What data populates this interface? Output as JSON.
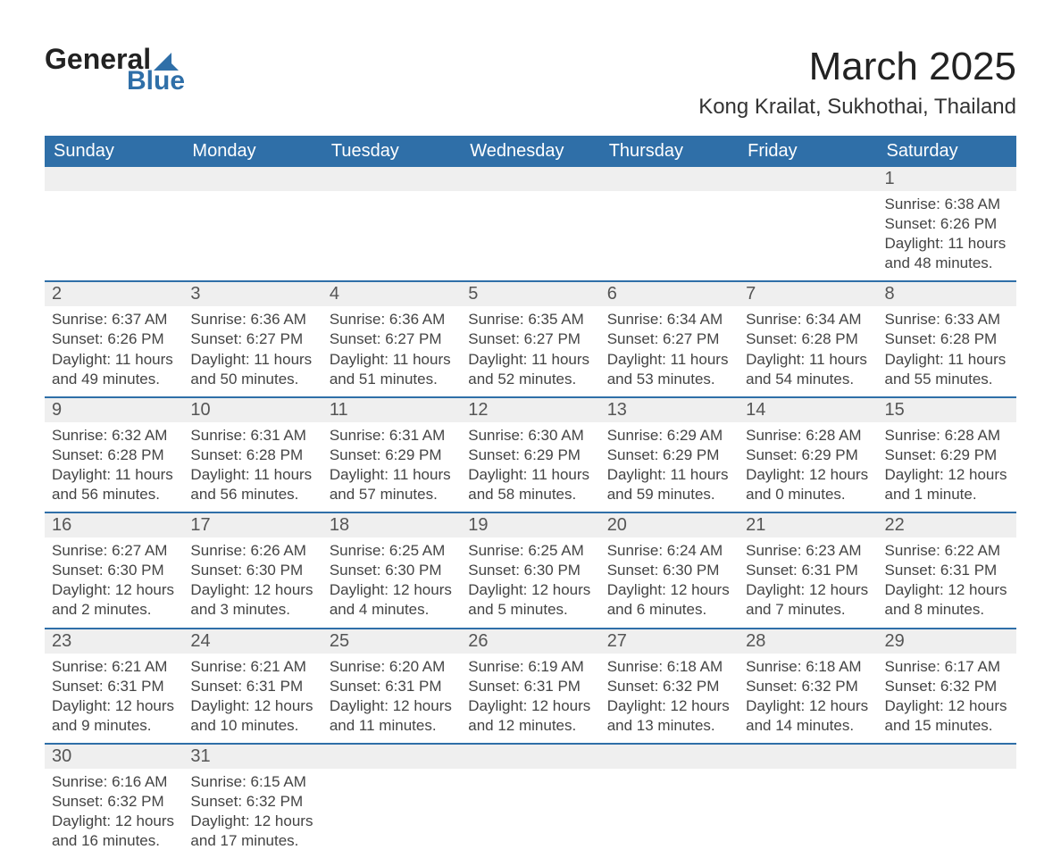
{
  "logo": {
    "word1": "General",
    "word2": "Blue",
    "tri_color": "#2f6fa8"
  },
  "header": {
    "month_title": "March 2025",
    "location": "Kong Krailat, Sukhothai, Thailand"
  },
  "colors": {
    "header_bg": "#2f6fa8",
    "header_text": "#ffffff",
    "stripe_bg": "#efefef",
    "border_blue": "#2f6fa8",
    "text": "#444444"
  },
  "day_names": [
    "Sunday",
    "Monday",
    "Tuesday",
    "Wednesday",
    "Thursday",
    "Friday",
    "Saturday"
  ],
  "weeks": [
    [
      null,
      null,
      null,
      null,
      null,
      null,
      {
        "n": "1",
        "sr": "Sunrise: 6:38 AM",
        "ss": "Sunset: 6:26 PM",
        "dl": "Daylight: 11 hours and 48 minutes."
      }
    ],
    [
      {
        "n": "2",
        "sr": "Sunrise: 6:37 AM",
        "ss": "Sunset: 6:26 PM",
        "dl": "Daylight: 11 hours and 49 minutes."
      },
      {
        "n": "3",
        "sr": "Sunrise: 6:36 AM",
        "ss": "Sunset: 6:27 PM",
        "dl": "Daylight: 11 hours and 50 minutes."
      },
      {
        "n": "4",
        "sr": "Sunrise: 6:36 AM",
        "ss": "Sunset: 6:27 PM",
        "dl": "Daylight: 11 hours and 51 minutes."
      },
      {
        "n": "5",
        "sr": "Sunrise: 6:35 AM",
        "ss": "Sunset: 6:27 PM",
        "dl": "Daylight: 11 hours and 52 minutes."
      },
      {
        "n": "6",
        "sr": "Sunrise: 6:34 AM",
        "ss": "Sunset: 6:27 PM",
        "dl": "Daylight: 11 hours and 53 minutes."
      },
      {
        "n": "7",
        "sr": "Sunrise: 6:34 AM",
        "ss": "Sunset: 6:28 PM",
        "dl": "Daylight: 11 hours and 54 minutes."
      },
      {
        "n": "8",
        "sr": "Sunrise: 6:33 AM",
        "ss": "Sunset: 6:28 PM",
        "dl": "Daylight: 11 hours and 55 minutes."
      }
    ],
    [
      {
        "n": "9",
        "sr": "Sunrise: 6:32 AM",
        "ss": "Sunset: 6:28 PM",
        "dl": "Daylight: 11 hours and 56 minutes."
      },
      {
        "n": "10",
        "sr": "Sunrise: 6:31 AM",
        "ss": "Sunset: 6:28 PM",
        "dl": "Daylight: 11 hours and 56 minutes."
      },
      {
        "n": "11",
        "sr": "Sunrise: 6:31 AM",
        "ss": "Sunset: 6:29 PM",
        "dl": "Daylight: 11 hours and 57 minutes."
      },
      {
        "n": "12",
        "sr": "Sunrise: 6:30 AM",
        "ss": "Sunset: 6:29 PM",
        "dl": "Daylight: 11 hours and 58 minutes."
      },
      {
        "n": "13",
        "sr": "Sunrise: 6:29 AM",
        "ss": "Sunset: 6:29 PM",
        "dl": "Daylight: 11 hours and 59 minutes."
      },
      {
        "n": "14",
        "sr": "Sunrise: 6:28 AM",
        "ss": "Sunset: 6:29 PM",
        "dl": "Daylight: 12 hours and 0 minutes."
      },
      {
        "n": "15",
        "sr": "Sunrise: 6:28 AM",
        "ss": "Sunset: 6:29 PM",
        "dl": "Daylight: 12 hours and 1 minute."
      }
    ],
    [
      {
        "n": "16",
        "sr": "Sunrise: 6:27 AM",
        "ss": "Sunset: 6:30 PM",
        "dl": "Daylight: 12 hours and 2 minutes."
      },
      {
        "n": "17",
        "sr": "Sunrise: 6:26 AM",
        "ss": "Sunset: 6:30 PM",
        "dl": "Daylight: 12 hours and 3 minutes."
      },
      {
        "n": "18",
        "sr": "Sunrise: 6:25 AM",
        "ss": "Sunset: 6:30 PM",
        "dl": "Daylight: 12 hours and 4 minutes."
      },
      {
        "n": "19",
        "sr": "Sunrise: 6:25 AM",
        "ss": "Sunset: 6:30 PM",
        "dl": "Daylight: 12 hours and 5 minutes."
      },
      {
        "n": "20",
        "sr": "Sunrise: 6:24 AM",
        "ss": "Sunset: 6:30 PM",
        "dl": "Daylight: 12 hours and 6 minutes."
      },
      {
        "n": "21",
        "sr": "Sunrise: 6:23 AM",
        "ss": "Sunset: 6:31 PM",
        "dl": "Daylight: 12 hours and 7 minutes."
      },
      {
        "n": "22",
        "sr": "Sunrise: 6:22 AM",
        "ss": "Sunset: 6:31 PM",
        "dl": "Daylight: 12 hours and 8 minutes."
      }
    ],
    [
      {
        "n": "23",
        "sr": "Sunrise: 6:21 AM",
        "ss": "Sunset: 6:31 PM",
        "dl": "Daylight: 12 hours and 9 minutes."
      },
      {
        "n": "24",
        "sr": "Sunrise: 6:21 AM",
        "ss": "Sunset: 6:31 PM",
        "dl": "Daylight: 12 hours and 10 minutes."
      },
      {
        "n": "25",
        "sr": "Sunrise: 6:20 AM",
        "ss": "Sunset: 6:31 PM",
        "dl": "Daylight: 12 hours and 11 minutes."
      },
      {
        "n": "26",
        "sr": "Sunrise: 6:19 AM",
        "ss": "Sunset: 6:31 PM",
        "dl": "Daylight: 12 hours and 12 minutes."
      },
      {
        "n": "27",
        "sr": "Sunrise: 6:18 AM",
        "ss": "Sunset: 6:32 PM",
        "dl": "Daylight: 12 hours and 13 minutes."
      },
      {
        "n": "28",
        "sr": "Sunrise: 6:18 AM",
        "ss": "Sunset: 6:32 PM",
        "dl": "Daylight: 12 hours and 14 minutes."
      },
      {
        "n": "29",
        "sr": "Sunrise: 6:17 AM",
        "ss": "Sunset: 6:32 PM",
        "dl": "Daylight: 12 hours and 15 minutes."
      }
    ],
    [
      {
        "n": "30",
        "sr": "Sunrise: 6:16 AM",
        "ss": "Sunset: 6:32 PM",
        "dl": "Daylight: 12 hours and 16 minutes."
      },
      {
        "n": "31",
        "sr": "Sunrise: 6:15 AM",
        "ss": "Sunset: 6:32 PM",
        "dl": "Daylight: 12 hours and 17 minutes."
      },
      null,
      null,
      null,
      null,
      null
    ]
  ]
}
